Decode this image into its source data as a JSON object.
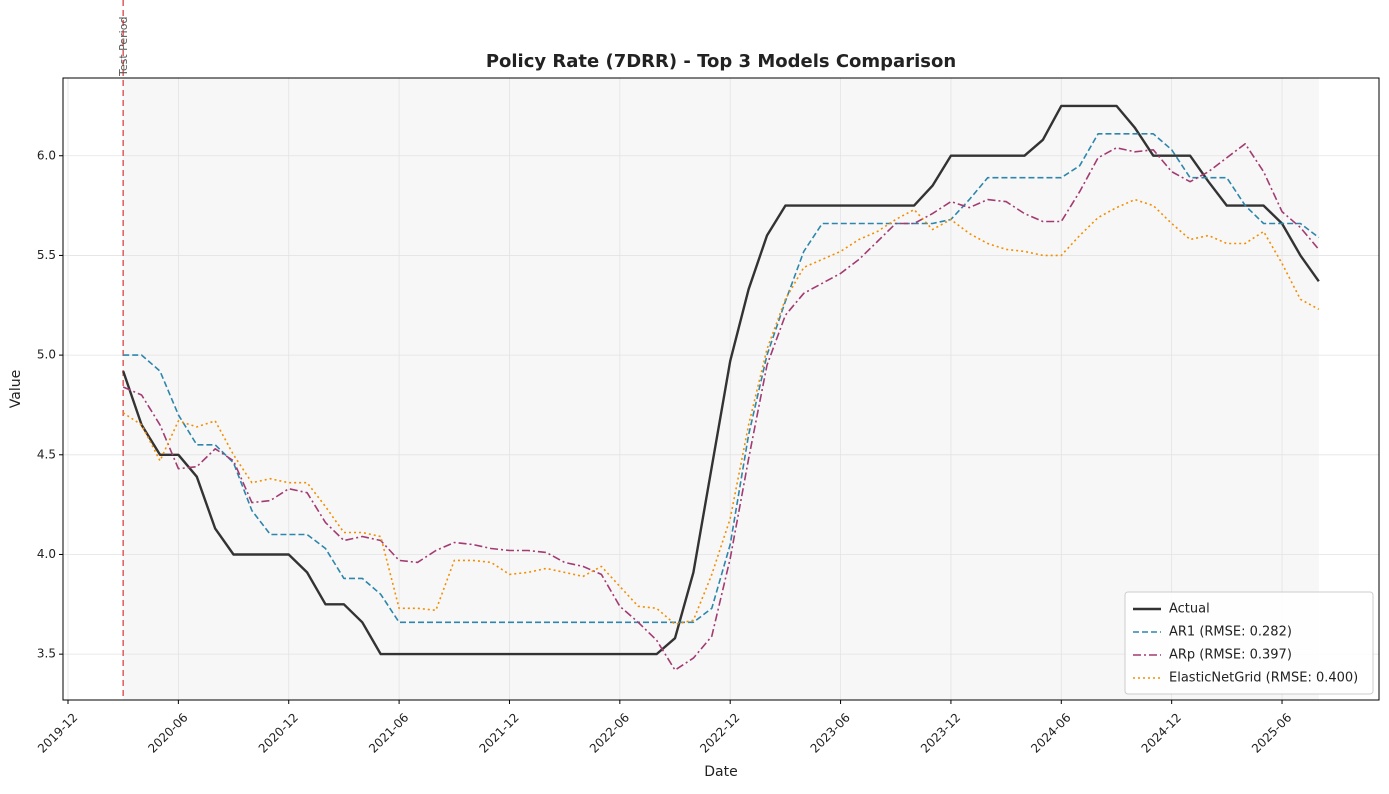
{
  "chart_data": {
    "type": "line",
    "title": "Policy Rate (7DRR) - Top 3 Models Comparison",
    "xlabel": "Date",
    "ylabel": "Value",
    "x": [
      "2020-03",
      "2020-04",
      "2020-05",
      "2020-06",
      "2020-07",
      "2020-08",
      "2020-09",
      "2020-10",
      "2020-11",
      "2020-12",
      "2021-01",
      "2021-02",
      "2021-03",
      "2021-04",
      "2021-05",
      "2021-06",
      "2021-07",
      "2021-08",
      "2021-09",
      "2021-10",
      "2021-11",
      "2021-12",
      "2022-01",
      "2022-02",
      "2022-03",
      "2022-04",
      "2022-05",
      "2022-06",
      "2022-07",
      "2022-08",
      "2022-09",
      "2022-10",
      "2022-11",
      "2022-12",
      "2023-01",
      "2023-02",
      "2023-03",
      "2023-04",
      "2023-05",
      "2023-06",
      "2023-07",
      "2023-08",
      "2023-09",
      "2023-10",
      "2023-11",
      "2023-12",
      "2024-01",
      "2024-02",
      "2024-03",
      "2024-04",
      "2024-05",
      "2024-06",
      "2024-07",
      "2024-08",
      "2024-09",
      "2024-10",
      "2024-11",
      "2024-12",
      "2025-01",
      "2025-02",
      "2025-03",
      "2025-04",
      "2025-05",
      "2025-06",
      "2025-07",
      "2025-08"
    ],
    "series": [
      {
        "name": "Actual",
        "color": "#333333",
        "linestyle": "solid",
        "values": [
          4.92,
          4.65,
          4.5,
          4.5,
          4.39,
          4.13,
          4.0,
          4.0,
          4.0,
          4.0,
          3.91,
          3.75,
          3.75,
          3.66,
          3.5,
          3.5,
          3.5,
          3.5,
          3.5,
          3.5,
          3.5,
          3.5,
          3.5,
          3.5,
          3.5,
          3.5,
          3.5,
          3.5,
          3.5,
          3.5,
          3.58,
          3.91,
          4.44,
          4.97,
          5.33,
          5.6,
          5.75,
          5.75,
          5.75,
          5.75,
          5.75,
          5.75,
          5.75,
          5.75,
          5.85,
          6.0,
          6.0,
          6.0,
          6.0,
          6.0,
          6.08,
          6.25,
          6.25,
          6.25,
          6.25,
          6.14,
          6.0,
          6.0,
          6.0,
          5.87,
          5.75,
          5.75,
          5.75,
          5.66,
          5.5,
          5.37
        ]
      },
      {
        "name": "AR1 (RMSE: 0.282)",
        "color": "#2e86ab",
        "linestyle": "dashed",
        "values": [
          5.0,
          5.0,
          4.92,
          4.7,
          4.55,
          4.55,
          4.46,
          4.22,
          4.1,
          4.1,
          4.1,
          4.03,
          3.88,
          3.88,
          3.8,
          3.66,
          3.66,
          3.66,
          3.66,
          3.66,
          3.66,
          3.66,
          3.66,
          3.66,
          3.66,
          3.66,
          3.66,
          3.66,
          3.66,
          3.66,
          3.66,
          3.66,
          3.73,
          4.05,
          4.6,
          5.0,
          5.27,
          5.52,
          5.66,
          5.66,
          5.66,
          5.66,
          5.66,
          5.66,
          5.66,
          5.68,
          5.78,
          5.89,
          5.89,
          5.89,
          5.89,
          5.89,
          5.95,
          6.11,
          6.11,
          6.11,
          6.11,
          6.03,
          5.89,
          5.89,
          5.89,
          5.75,
          5.66,
          5.66,
          5.66,
          5.59
        ]
      },
      {
        "name": "ARp (RMSE: 0.397)",
        "color": "#a23b72",
        "linestyle": "dashdot",
        "values": [
          4.84,
          4.8,
          4.65,
          4.43,
          4.44,
          4.53,
          4.47,
          4.26,
          4.27,
          4.33,
          4.31,
          4.16,
          4.07,
          4.09,
          4.07,
          3.97,
          3.96,
          4.02,
          4.06,
          4.05,
          4.03,
          4.02,
          4.02,
          4.01,
          3.96,
          3.94,
          3.9,
          3.74,
          3.66,
          3.57,
          3.42,
          3.48,
          3.59,
          3.98,
          4.48,
          4.95,
          5.2,
          5.31,
          5.36,
          5.41,
          5.48,
          5.57,
          5.66,
          5.66,
          5.71,
          5.77,
          5.74,
          5.78,
          5.77,
          5.71,
          5.67,
          5.67,
          5.82,
          5.99,
          6.04,
          6.02,
          6.03,
          5.92,
          5.87,
          5.92,
          5.99,
          6.06,
          5.92,
          5.72,
          5.64,
          5.53
        ]
      },
      {
        "name": "ElasticNetGrid (RMSE: 0.400)",
        "color": "#f18f01",
        "linestyle": "dotted",
        "values": [
          4.71,
          4.65,
          4.47,
          4.67,
          4.64,
          4.67,
          4.5,
          4.36,
          4.38,
          4.36,
          4.36,
          4.24,
          4.11,
          4.11,
          4.09,
          3.73,
          3.73,
          3.72,
          3.97,
          3.97,
          3.96,
          3.9,
          3.91,
          3.93,
          3.91,
          3.89,
          3.94,
          3.84,
          3.74,
          3.73,
          3.65,
          3.67,
          3.9,
          4.18,
          4.65,
          5.03,
          5.28,
          5.44,
          5.48,
          5.52,
          5.58,
          5.62,
          5.68,
          5.73,
          5.63,
          5.68,
          5.61,
          5.56,
          5.53,
          5.52,
          5.5,
          5.5,
          5.6,
          5.69,
          5.74,
          5.78,
          5.75,
          5.66,
          5.58,
          5.6,
          5.56,
          5.56,
          5.62,
          5.46,
          5.28,
          5.23
        ]
      }
    ],
    "xlim": [
      "2019-12",
      "2025-11"
    ],
    "xticks": [
      "2019-12",
      "2020-06",
      "2020-12",
      "2021-06",
      "2021-12",
      "2022-06",
      "2022-12",
      "2023-06",
      "2023-12",
      "2024-06",
      "2024-12",
      "2025-06"
    ],
    "ylim": [
      3.27,
      6.39
    ],
    "yticks": [
      3.5,
      {
        "value": 4,
        "label": "4.0"
      },
      4.5,
      {
        "value": 5,
        "label": "5.0"
      },
      5.5,
      {
        "value": 6,
        "label": "6.0"
      }
    ],
    "grid": true,
    "legend": "lower right",
    "vline": {
      "x": "2020-03",
      "label": "Test Period",
      "color": "#e06666"
    }
  }
}
